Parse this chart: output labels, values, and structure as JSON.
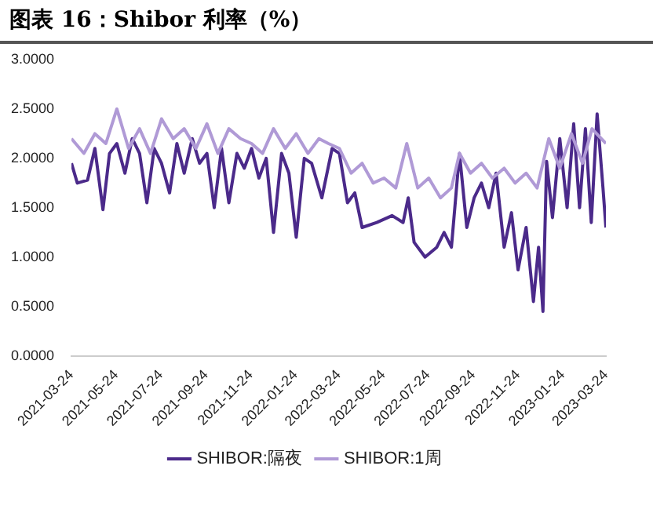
{
  "chart_data": {
    "type": "line",
    "title": "图表 16：Shibor 利率（%）",
    "xlim": [
      "2021-03-24",
      "2023-03-24"
    ],
    "xticks": [
      "2021-03-24",
      "2021-05-24",
      "2021-07-24",
      "2021-09-24",
      "2021-11-24",
      "2022-01-24",
      "2022-03-24",
      "2022-05-24",
      "2022-07-24",
      "2022-09-24",
      "2022-11-24",
      "2023-01-24",
      "2023-03-24"
    ],
    "ylim": [
      0,
      3
    ],
    "yticks": [
      {
        "value": 0,
        "label": "0.0000"
      },
      {
        "value": 0.5,
        "label": "0.5000"
      },
      {
        "value": 1,
        "label": "1.0000"
      },
      {
        "value": 1.5,
        "label": "1.5000"
      },
      {
        "value": 2,
        "label": "2.0000"
      },
      {
        "value": 2.5,
        "label": "2.5000"
      },
      {
        "value": 3,
        "label": "3.0000"
      }
    ],
    "grid": false,
    "legend": "bottom",
    "marker": "none",
    "line_style": "solid",
    "series": [
      {
        "name": "SHIBOR:隔夜",
        "color": "#4b2a8a",
        "x": [
          "2021-03-24",
          "2021-04-01",
          "2021-04-15",
          "2021-04-25",
          "2021-05-06",
          "2021-05-15",
          "2021-05-25",
          "2021-06-05",
          "2021-06-15",
          "2021-06-25",
          "2021-07-05",
          "2021-07-15",
          "2021-07-25",
          "2021-08-05",
          "2021-08-15",
          "2021-08-25",
          "2021-09-05",
          "2021-09-15",
          "2021-09-25",
          "2021-10-05",
          "2021-10-15",
          "2021-10-25",
          "2021-11-05",
          "2021-11-15",
          "2021-11-25",
          "2021-12-05",
          "2021-12-15",
          "2021-12-25",
          "2022-01-05",
          "2022-01-15",
          "2022-01-25",
          "2022-02-05",
          "2022-02-15",
          "2022-03-01",
          "2022-03-15",
          "2022-03-25",
          "2022-04-05",
          "2022-04-15",
          "2022-04-25",
          "2022-05-15",
          "2022-06-05",
          "2022-06-20",
          "2022-06-27",
          "2022-07-05",
          "2022-07-20",
          "2022-08-05",
          "2022-08-15",
          "2022-08-25",
          "2022-09-05",
          "2022-09-15",
          "2022-09-25",
          "2022-10-05",
          "2022-10-15",
          "2022-10-25",
          "2022-11-05",
          "2022-11-15",
          "2022-11-24",
          "2022-12-05",
          "2022-12-15",
          "2022-12-22",
          "2022-12-28",
          "2023-01-02",
          "2023-01-10",
          "2023-01-20",
          "2023-01-30",
          "2023-02-08",
          "2023-02-16",
          "2023-02-24",
          "2023-03-04",
          "2023-03-12",
          "2023-03-20",
          "2023-03-24"
        ],
        "values": [
          1.95,
          1.75,
          1.78,
          2.1,
          1.48,
          2.05,
          2.15,
          1.85,
          2.2,
          2.05,
          1.55,
          2.1,
          1.95,
          1.65,
          2.15,
          1.85,
          2.2,
          1.95,
          2.05,
          1.5,
          2.1,
          1.55,
          2.05,
          1.9,
          2.1,
          1.8,
          2.0,
          1.25,
          2.05,
          1.85,
          1.2,
          2.0,
          1.95,
          1.6,
          2.1,
          2.05,
          1.55,
          1.65,
          1.3,
          1.35,
          1.42,
          1.35,
          1.6,
          1.15,
          1.0,
          1.1,
          1.25,
          1.1,
          2.05,
          1.3,
          1.6,
          1.75,
          1.5,
          1.85,
          1.1,
          1.45,
          0.87,
          1.3,
          0.55,
          1.1,
          0.45,
          1.97,
          1.4,
          2.2,
          1.5,
          2.35,
          1.5,
          2.3,
          1.35,
          2.45,
          1.7,
          1.3
        ]
      },
      {
        "name": "SHIBOR:1周",
        "color": "#b09ad6",
        "x": [
          "2021-03-24",
          "2021-04-10",
          "2021-04-25",
          "2021-05-10",
          "2021-05-25",
          "2021-06-10",
          "2021-06-25",
          "2021-07-10",
          "2021-07-25",
          "2021-08-10",
          "2021-08-25",
          "2021-09-10",
          "2021-09-25",
          "2021-10-10",
          "2021-10-25",
          "2021-11-10",
          "2021-11-25",
          "2021-12-10",
          "2021-12-25",
          "2022-01-10",
          "2022-01-25",
          "2022-02-10",
          "2022-02-25",
          "2022-03-10",
          "2022-03-25",
          "2022-04-10",
          "2022-04-25",
          "2022-05-10",
          "2022-05-25",
          "2022-06-10",
          "2022-06-25",
          "2022-07-10",
          "2022-07-25",
          "2022-08-10",
          "2022-08-25",
          "2022-09-05",
          "2022-09-20",
          "2022-10-05",
          "2022-10-20",
          "2022-11-05",
          "2022-11-20",
          "2022-12-05",
          "2022-12-20",
          "2023-01-05",
          "2023-01-20",
          "2023-02-05",
          "2023-02-20",
          "2023-03-05",
          "2023-03-24"
        ],
        "values": [
          2.2,
          2.05,
          2.25,
          2.15,
          2.5,
          2.1,
          2.3,
          2.05,
          2.4,
          2.2,
          2.3,
          2.1,
          2.35,
          2.05,
          2.3,
          2.2,
          2.15,
          2.05,
          2.3,
          2.1,
          2.25,
          2.05,
          2.2,
          2.15,
          2.1,
          1.85,
          1.95,
          1.75,
          1.8,
          1.7,
          2.15,
          1.7,
          1.8,
          1.6,
          1.7,
          2.05,
          1.85,
          1.95,
          1.8,
          1.9,
          1.75,
          1.85,
          1.7,
          2.2,
          1.9,
          2.25,
          1.95,
          2.3,
          2.15
        ]
      }
    ]
  }
}
